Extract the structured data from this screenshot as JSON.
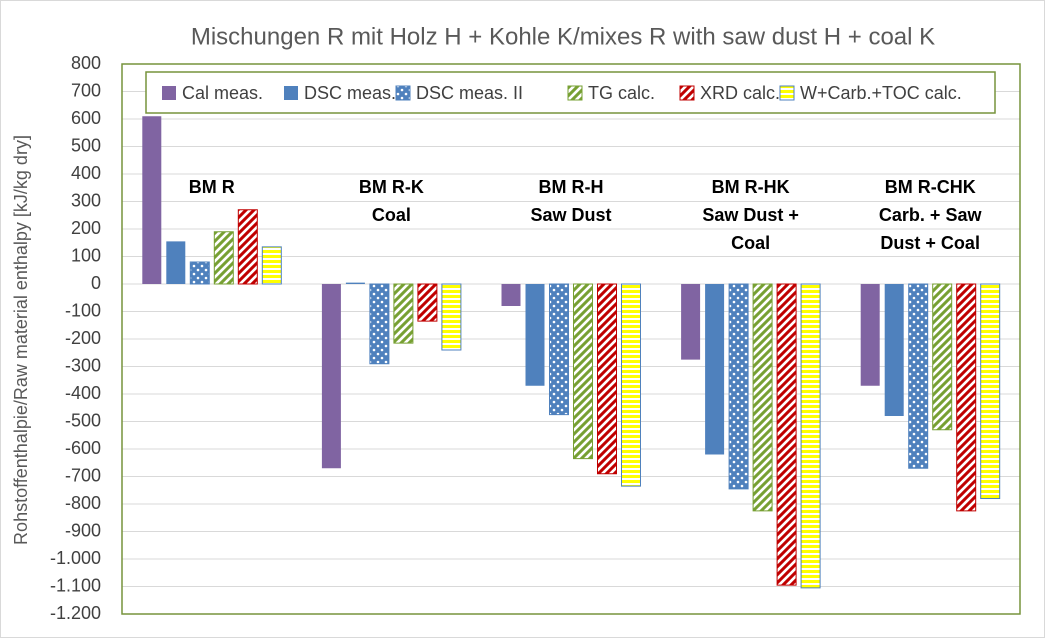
{
  "chart_data": {
    "type": "bar",
    "title": "Mischungen R mit Holz H + Kohle K/mixes R with saw dust H + coal K",
    "y_label": "Rohstoffenthalpie/Raw material enthalpy [kJ/kg dry]",
    "categories": [
      [
        "BM R"
      ],
      [
        "BM R-K",
        "Coal"
      ],
      [
        "BM R-H",
        "Saw Dust"
      ],
      [
        "BM R-HK",
        "Saw Dust +",
        "Coal"
      ],
      [
        "BM R-CHK",
        "Carb. + Saw",
        "Dust + Coal"
      ]
    ],
    "series": [
      {
        "name": "Cal meas.",
        "color": "#8064a2",
        "pattern": "solid",
        "values": [
          610,
          -670,
          -80,
          -275,
          -370
        ]
      },
      {
        "name": "DSC meas. I",
        "color": "#4f81bd",
        "pattern": "solid",
        "values": [
          155,
          5,
          -370,
          -620,
          -480
        ]
      },
      {
        "name": "DSC meas. II",
        "color": "#4f81bd",
        "pattern": "dots",
        "values": [
          80,
          -290,
          -475,
          -745,
          -670
        ]
      },
      {
        "name": "TG calc.",
        "color": "#77a033",
        "pattern": "diagonal",
        "values": [
          190,
          -215,
          -635,
          -825,
          -530
        ]
      },
      {
        "name": "XRD calc.",
        "color": "#c00000",
        "pattern": "diagonal",
        "values": [
          270,
          -135,
          -690,
          -1095,
          -825
        ]
      },
      {
        "name": "W+Carb.+TOC calc.",
        "color": "#ffff00",
        "edgecolor": "#4f81bd",
        "pattern": "horizontal",
        "values": [
          135,
          -240,
          -735,
          -1105,
          -780
        ]
      }
    ],
    "ylim": [
      -1200,
      800
    ],
    "yticks": [
      {
        "value": -1200,
        "label": "-1.200"
      },
      {
        "value": -1100,
        "label": "-1.100"
      },
      {
        "value": -1000,
        "label": "-1.000"
      },
      -900,
      -800,
      -700,
      -600,
      -500,
      -400,
      -300,
      -200,
      -100,
      0,
      100,
      200,
      300,
      400,
      500,
      600,
      700,
      800
    ],
    "grid": true,
    "legend": "top"
  }
}
